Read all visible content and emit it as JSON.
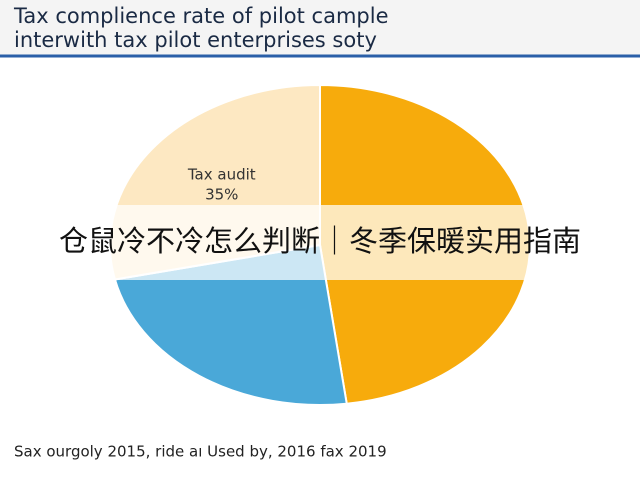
{
  "chart_data": {
    "type": "pie",
    "title": "Tax complience rate of pilot cample interwith tax pilot enterprises soty",
    "categories": [
      null,
      null,
      "Tax audit"
    ],
    "values": [
      59,
      29,
      35
    ],
    "value_labels": [
      null,
      null,
      "35%"
    ],
    "colors": [
      "#f7ab0c",
      "#4aa8d8",
      "#fde8c2"
    ],
    "footnote": "Sax ourgoly 2015, ride aı Used by, 2016 fax 2019",
    "overlay": "仓鼠冷不冷怎么判断｜冬季保暖实用指南"
  }
}
